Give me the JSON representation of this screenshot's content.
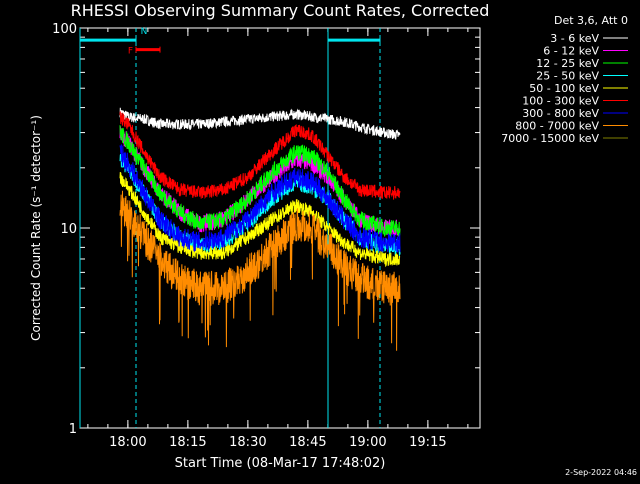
{
  "chart_data": {
    "type": "line",
    "title": "RHESSI Observing Summary Count Rates, Corrected",
    "xlabel": "Start Time (08-Mar-17 17:48:02)",
    "ylabel": "Corrected Count Rate (s⁻¹ detector⁻¹)",
    "y_scale": "log",
    "ylim": [
      1,
      100
    ],
    "xlim_minutes": [
      0,
      100
    ],
    "x_tick_labels": [
      "18:00",
      "18:15",
      "18:30",
      "18:45",
      "19:00",
      "19:15"
    ],
    "x_tick_minutes": [
      11.97,
      26.97,
      41.97,
      56.97,
      71.97,
      86.97
    ],
    "y_tick_labels": [
      "1",
      "10",
      "100"
    ],
    "y_tick_values": [
      1,
      10,
      100
    ],
    "legend_title": "Det 3,6, Att 0",
    "legend_position": "top-right",
    "series": [
      {
        "name": "3 - 6 keV",
        "color": "#ffffff",
        "key": [
          [
            10,
            38
          ],
          [
            12,
            36
          ],
          [
            16,
            35
          ],
          [
            20,
            33
          ],
          [
            25,
            33
          ],
          [
            30,
            33
          ],
          [
            36,
            34
          ],
          [
            42,
            35
          ],
          [
            48,
            36
          ],
          [
            54,
            37
          ],
          [
            58,
            36
          ],
          [
            62,
            35
          ],
          [
            66,
            34
          ],
          [
            70,
            32
          ],
          [
            76,
            30
          ],
          [
            80,
            29
          ]
        ],
        "noise": 0.06
      },
      {
        "name": "6 - 12 keV",
        "color": "#ff00ff",
        "key": [
          [
            10,
            30
          ],
          [
            12,
            27
          ],
          [
            16,
            20
          ],
          [
            20,
            15
          ],
          [
            25,
            12
          ],
          [
            30,
            10.5
          ],
          [
            36,
            11
          ],
          [
            42,
            14
          ],
          [
            48,
            18
          ],
          [
            54,
            22
          ],
          [
            58,
            21
          ],
          [
            62,
            18
          ],
          [
            66,
            14
          ],
          [
            70,
            11
          ],
          [
            76,
            10
          ],
          [
            80,
            10
          ]
        ],
        "noise": 0.1
      },
      {
        "name": "12 - 25 keV",
        "color": "#00ff00",
        "key": [
          [
            10,
            30
          ],
          [
            12,
            27
          ],
          [
            16,
            20
          ],
          [
            20,
            15
          ],
          [
            25,
            12
          ],
          [
            30,
            10.5
          ],
          [
            36,
            11
          ],
          [
            42,
            14
          ],
          [
            48,
            19
          ],
          [
            54,
            24
          ],
          [
            58,
            23
          ],
          [
            62,
            19
          ],
          [
            66,
            14
          ],
          [
            70,
            11
          ],
          [
            76,
            10
          ],
          [
            80,
            10
          ]
        ],
        "noise": 0.1
      },
      {
        "name": "25 - 50 keV",
        "color": "#00ffff",
        "key": [
          [
            10,
            22
          ],
          [
            12,
            20
          ],
          [
            16,
            15
          ],
          [
            20,
            11
          ],
          [
            25,
            9
          ],
          [
            30,
            8
          ],
          [
            36,
            8.5
          ],
          [
            42,
            10.5
          ],
          [
            48,
            14
          ],
          [
            54,
            17
          ],
          [
            58,
            16
          ],
          [
            62,
            14
          ],
          [
            66,
            11
          ],
          [
            70,
            9
          ],
          [
            76,
            8
          ],
          [
            80,
            8
          ]
        ],
        "noise": 0.1
      },
      {
        "name": "50 - 100 keV",
        "color": "#ffff00",
        "key": [
          [
            10,
            18
          ],
          [
            12,
            16
          ],
          [
            16,
            12
          ],
          [
            20,
            9
          ],
          [
            25,
            8
          ],
          [
            30,
            7.5
          ],
          [
            36,
            7.5
          ],
          [
            42,
            9
          ],
          [
            48,
            11
          ],
          [
            54,
            13
          ],
          [
            58,
            12
          ],
          [
            62,
            10
          ],
          [
            66,
            8.5
          ],
          [
            70,
            7.5
          ],
          [
            76,
            7
          ],
          [
            80,
            7
          ]
        ],
        "noise": 0.08
      },
      {
        "name": "100 - 300 keV",
        "color": "#ff0000",
        "key": [
          [
            10,
            36
          ],
          [
            12,
            33
          ],
          [
            16,
            24
          ],
          [
            20,
            18
          ],
          [
            25,
            15.5
          ],
          [
            30,
            15
          ],
          [
            36,
            15.5
          ],
          [
            42,
            18
          ],
          [
            48,
            24
          ],
          [
            54,
            31
          ],
          [
            58,
            29
          ],
          [
            62,
            23
          ],
          [
            66,
            18
          ],
          [
            70,
            15.5
          ],
          [
            76,
            15
          ],
          [
            80,
            15
          ]
        ],
        "noise": 0.08
      },
      {
        "name": "300 - 800 keV",
        "color": "#0000ff",
        "key": [
          [
            10,
            24
          ],
          [
            12,
            21
          ],
          [
            16,
            15
          ],
          [
            20,
            11
          ],
          [
            25,
            9
          ],
          [
            30,
            8.5
          ],
          [
            36,
            9
          ],
          [
            42,
            11
          ],
          [
            48,
            15
          ],
          [
            54,
            18
          ],
          [
            58,
            17
          ],
          [
            62,
            14
          ],
          [
            66,
            11
          ],
          [
            70,
            9
          ],
          [
            76,
            8.5
          ],
          [
            80,
            8.5
          ]
        ],
        "noise": 0.12
      },
      {
        "name": "800 - 7000 keV",
        "color": "#ff8c00",
        "key": [
          [
            10,
            13
          ],
          [
            12,
            12
          ],
          [
            16,
            9
          ],
          [
            20,
            7
          ],
          [
            25,
            5.5
          ],
          [
            30,
            5
          ],
          [
            36,
            5
          ],
          [
            42,
            6
          ],
          [
            48,
            8
          ],
          [
            54,
            10.5
          ],
          [
            58,
            10
          ],
          [
            62,
            8
          ],
          [
            66,
            6.5
          ],
          [
            70,
            5.5
          ],
          [
            76,
            5
          ],
          [
            80,
            5
          ]
        ],
        "noise": 0.2
      },
      {
        "name": "7000 - 15000 keV",
        "color": "#808000",
        "key": [],
        "noise": 0
      }
    ],
    "time_bars": [
      {
        "label": "",
        "color": "#00e5ee",
        "x": [
          0,
          14
        ],
        "y": 87
      },
      {
        "label": "",
        "color": "#00e5ee",
        "x": [
          62,
          75
        ],
        "y": 87
      },
      {
        "label": "N",
        "color": "#00e5ee",
        "x": [
          14,
          14
        ],
        "y": 87
      },
      {
        "label": "F",
        "color": "#ff0000",
        "x": [
          14,
          20
        ],
        "y": 78
      }
    ],
    "markers_solid": [
      0,
      62
    ],
    "markers_dashed": [
      14,
      75
    ]
  },
  "footer": {
    "date": "2-Sep-2022 04:46"
  }
}
